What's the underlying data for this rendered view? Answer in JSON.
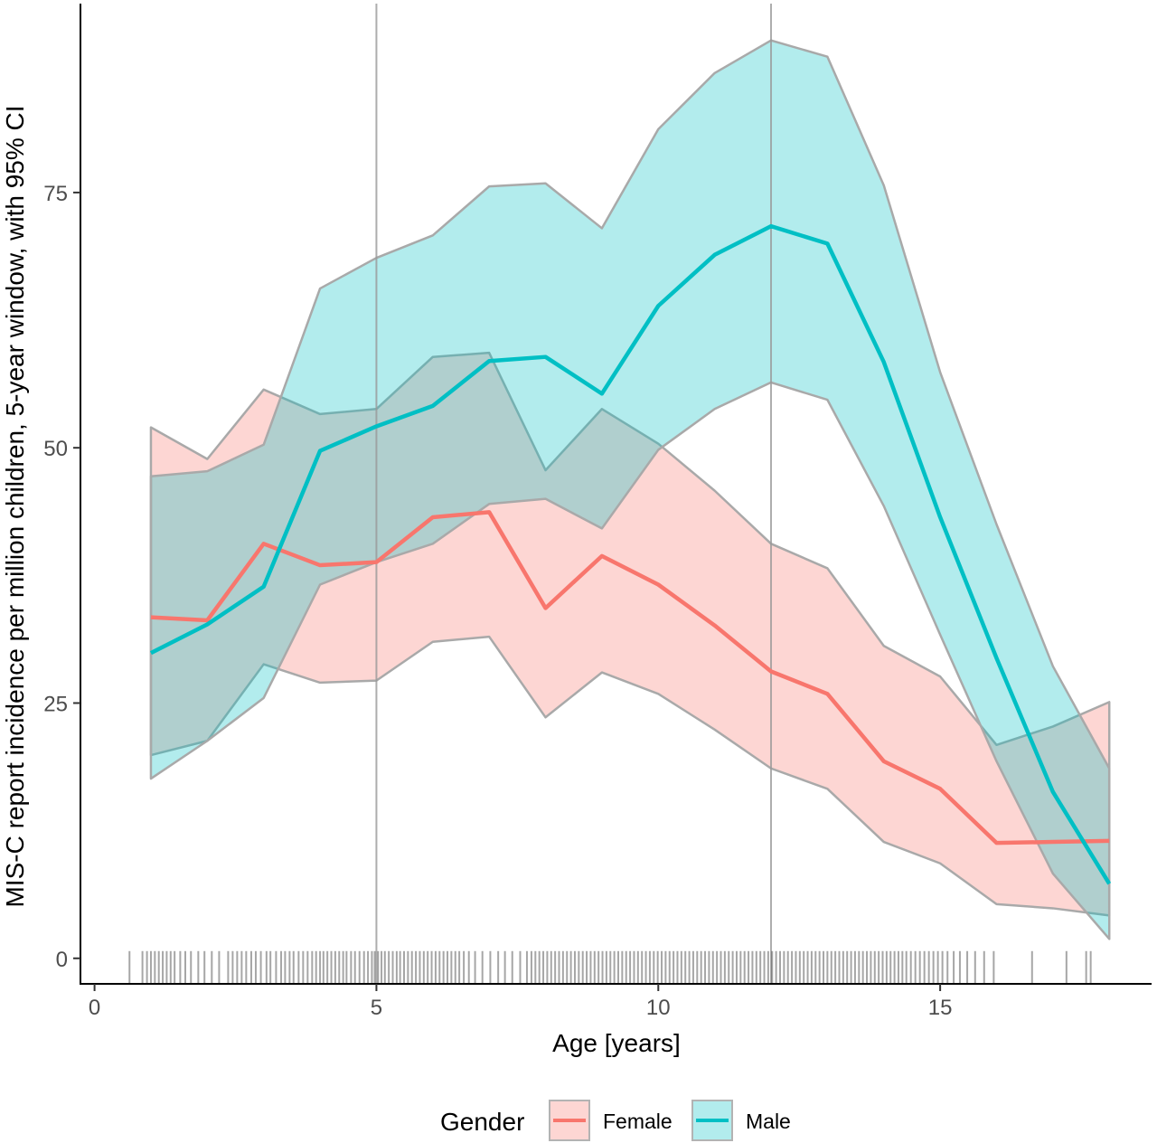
{
  "chart_data": {
    "type": "line",
    "xlabel": "Age [years]",
    "ylabel": "MIS-C report incidence per million children, 5-year window, with 95% CI",
    "xlim": [
      -0.25,
      18.75
    ],
    "ylim": [
      -2.5,
      93.5
    ],
    "xticks": [
      0,
      5,
      10,
      15
    ],
    "yticks": [
      0,
      25,
      50,
      75
    ],
    "xtick_labels": [
      "0",
      "5",
      "10",
      "15"
    ],
    "ytick_labels": [
      "0",
      "25",
      "50",
      "75"
    ],
    "vlines": [
      5,
      12
    ],
    "grid": false,
    "legend": {
      "title": "Gender",
      "position": "bottom"
    },
    "x": [
      1,
      2,
      3,
      4,
      5,
      6,
      7,
      8,
      9,
      10,
      11,
      12,
      13,
      14,
      15,
      16,
      17,
      18
    ],
    "series": [
      {
        "name": "Female",
        "color": "#F8766D",
        "fill": "#F8766D",
        "values": [
          33.4,
          33.1,
          40.6,
          38.5,
          38.8,
          43.2,
          43.7,
          34.3,
          39.4,
          36.6,
          32.6,
          28.1,
          25.9,
          19.3,
          16.6,
          11.3,
          11.4,
          11.5
        ],
        "lower": [
          19.9,
          21.3,
          28.8,
          27.0,
          27.2,
          31.0,
          31.5,
          23.6,
          28.0,
          25.9,
          22.4,
          18.6,
          16.6,
          11.4,
          9.3,
          5.3,
          4.9,
          4.2
        ],
        "upper": [
          52.0,
          48.9,
          55.7,
          53.3,
          53.8,
          58.9,
          59.3,
          47.8,
          53.8,
          50.4,
          45.8,
          40.6,
          38.2,
          30.6,
          27.6,
          20.9,
          22.7,
          25.1
        ]
      },
      {
        "name": "Male",
        "color": "#00BFC4",
        "fill": "#00BFC4",
        "values": [
          29.9,
          32.7,
          36.4,
          49.7,
          52.1,
          54.1,
          58.5,
          58.9,
          55.3,
          63.9,
          68.9,
          71.7,
          70.0,
          58.4,
          43.2,
          29.4,
          16.3,
          7.3
        ],
        "lower": [
          17.6,
          21.3,
          25.5,
          36.6,
          38.8,
          40.6,
          44.5,
          45.0,
          42.1,
          49.8,
          53.8,
          56.4,
          54.7,
          44.3,
          31.7,
          19.3,
          8.3,
          1.9
        ],
        "upper": [
          47.2,
          47.7,
          50.3,
          65.6,
          68.6,
          70.8,
          75.6,
          75.9,
          71.5,
          81.2,
          86.7,
          89.9,
          88.3,
          75.7,
          57.4,
          42.5,
          28.6,
          18.6
        ]
      }
    ],
    "rug": [
      0.62,
      0.85,
      0.93,
      1.0,
      1.07,
      1.14,
      1.21,
      1.28,
      1.35,
      1.42,
      1.52,
      1.61,
      1.71,
      1.84,
      1.95,
      2.08,
      2.21,
      2.37,
      2.45,
      2.53,
      2.61,
      2.69,
      2.78,
      2.86,
      2.95,
      3.05,
      3.12,
      3.22,
      3.31,
      3.38,
      3.46,
      3.53,
      3.62,
      3.7,
      3.78,
      3.86,
      3.93,
      4.0,
      4.06,
      4.13,
      4.2,
      4.27,
      4.34,
      4.41,
      4.47,
      4.55,
      4.62,
      4.7,
      4.78,
      4.85,
      4.92,
      4.97,
      5.03,
      5.09,
      5.15,
      5.22,
      5.29,
      5.36,
      5.42,
      5.49,
      5.56,
      5.63,
      5.7,
      5.77,
      5.84,
      5.91,
      5.98,
      6.05,
      6.12,
      6.19,
      6.26,
      6.33,
      6.4,
      6.47,
      6.55,
      6.64,
      6.75,
      6.88,
      7.02,
      7.16,
      7.28,
      7.41,
      7.55,
      7.67,
      7.75,
      7.82,
      7.89,
      7.96,
      8.03,
      8.1,
      8.17,
      8.24,
      8.31,
      8.38,
      8.45,
      8.52,
      8.59,
      8.66,
      8.73,
      8.8,
      8.87,
      8.94,
      9.01,
      9.08,
      9.15,
      9.22,
      9.29,
      9.36,
      9.43,
      9.5,
      9.57,
      9.64,
      9.71,
      9.78,
      9.85,
      9.92,
      9.99,
      10.06,
      10.13,
      10.2,
      10.27,
      10.34,
      10.41,
      10.48,
      10.55,
      10.62,
      10.69,
      10.76,
      10.83,
      10.9,
      10.97,
      11.04,
      11.11,
      11.18,
      11.25,
      11.32,
      11.39,
      11.46,
      11.53,
      11.6,
      11.67,
      11.74,
      11.81,
      11.88,
      11.95,
      12.02,
      12.09,
      12.16,
      12.23,
      12.3,
      12.37,
      12.44,
      12.51,
      12.58,
      12.65,
      12.72,
      12.79,
      12.86,
      12.93,
      13.0,
      13.07,
      13.14,
      13.21,
      13.28,
      13.35,
      13.42,
      13.49,
      13.56,
      13.63,
      13.7,
      13.77,
      13.84,
      13.91,
      13.98,
      14.05,
      14.12,
      14.19,
      14.26,
      14.33,
      14.4,
      14.48,
      14.56,
      14.64,
      14.72,
      14.8,
      14.88,
      14.96,
      15.04,
      15.13,
      15.24,
      15.35,
      15.48,
      15.62,
      15.78,
      15.95,
      16.63,
      17.24,
      17.59,
      17.67
    ]
  }
}
